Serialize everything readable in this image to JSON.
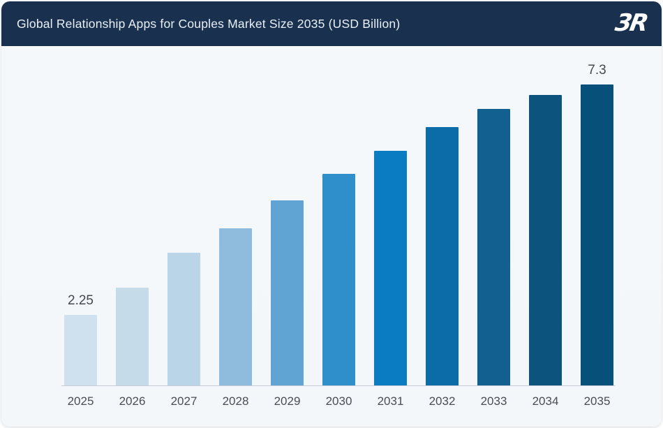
{
  "header": {
    "title": "Global Relationship Apps for Couples Market Size 2035 (USD Billion)",
    "logo_text": "3R",
    "bg_color": "#19314f",
    "text_color": "#e9f0f7"
  },
  "chart_data": {
    "type": "bar",
    "title": "Global Relationship Apps for Couples Market Size 2035 (USD Billion)",
    "unit": "USD Billion",
    "categories": [
      "2025",
      "2026",
      "2027",
      "2028",
      "2029",
      "2030",
      "2031",
      "2032",
      "2033",
      "2034",
      "2035"
    ],
    "values": [
      2.25,
      2.85,
      3.61,
      4.15,
      4.76,
      5.34,
      5.85,
      6.37,
      6.76,
      7.07,
      7.3
    ],
    "value_labels": [
      "2.25",
      "",
      "",
      "",
      "",
      "",
      "",
      "",
      "",
      "",
      "7.3"
    ],
    "bar_colors": [
      "#cfe0ee",
      "#c5dbea",
      "#bad5e8",
      "#8fbcdd",
      "#5fa4d2",
      "#2e8fcb",
      "#0a7cc1",
      "#0b6ca8",
      "#11608f",
      "#0c547e",
      "#07507a"
    ],
    "ylim": [
      0.7,
      7.3
    ],
    "grid": false,
    "legend": false,
    "axis_line_color": "#c9cfd6",
    "label_color": "#45494e"
  }
}
